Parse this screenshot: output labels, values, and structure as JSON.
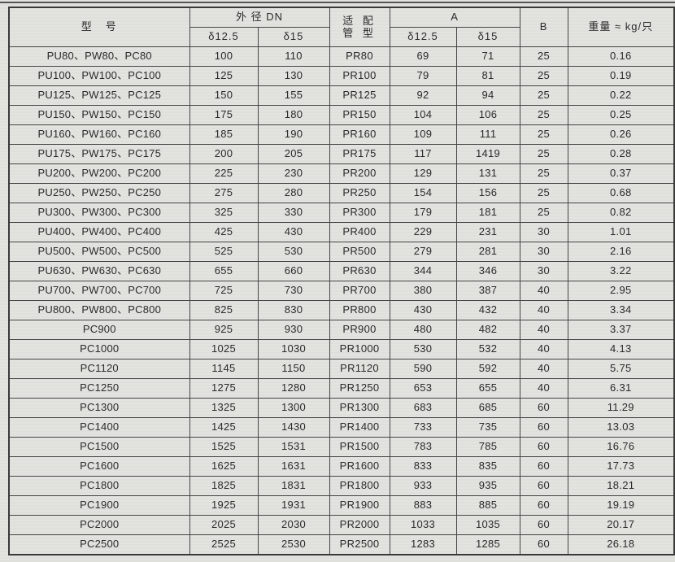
{
  "page": {
    "background": "#e3e3df",
    "border_color": "#454545",
    "text_color": "#2a2a2a"
  },
  "table": {
    "columns": {
      "model": "型　号",
      "outer_diameter_group": "外 径 DN",
      "outer_diameter_d125": "δ12.5",
      "outer_diameter_d15": "δ15",
      "pipe_type_line1": "适 配",
      "pipe_type_line2": "管 型",
      "a_group": "A",
      "a_d125": "δ12.5",
      "a_d15": "δ15",
      "b": "B",
      "weight": "重量 ≈ kg/只"
    },
    "col_keys": [
      "model",
      "dn-d125",
      "dn-d15",
      "pipe-type",
      "a-d125",
      "a-d15",
      "b",
      "weight"
    ],
    "rows": [
      [
        "PU80、PW80、PC80",
        "100",
        "110",
        "PR80",
        "69",
        "71",
        "25",
        "0.16"
      ],
      [
        "PU100、PW100、PC100",
        "125",
        "130",
        "PR100",
        "79",
        "81",
        "25",
        "0.19"
      ],
      [
        "PU125、PW125、PC125",
        "150",
        "155",
        "PR125",
        "92",
        "94",
        "25",
        "0.22"
      ],
      [
        "PU150、PW150、PC150",
        "175",
        "180",
        "PR150",
        "104",
        "106",
        "25",
        "0.25"
      ],
      [
        "PU160、PW160、PC160",
        "185",
        "190",
        "PR160",
        "109",
        "111",
        "25",
        "0.26"
      ],
      [
        "PU175、PW175、PC175",
        "200",
        "205",
        "PR175",
        "117",
        "1419",
        "25",
        "0.28"
      ],
      [
        "PU200、PW200、PC200",
        "225",
        "230",
        "PR200",
        "129",
        "131",
        "25",
        "0.37"
      ],
      [
        "PU250、PW250、PC250",
        "275",
        "280",
        "PR250",
        "154",
        "156",
        "25",
        "0.68"
      ],
      [
        "PU300、PW300、PC300",
        "325",
        "330",
        "PR300",
        "179",
        "181",
        "25",
        "0.82"
      ],
      [
        "PU400、PW400、PC400",
        "425",
        "430",
        "PR400",
        "229",
        "231",
        "30",
        "1.01"
      ],
      [
        "PU500、PW500、PC500",
        "525",
        "530",
        "PR500",
        "279",
        "281",
        "30",
        "2.16"
      ],
      [
        "PU630、PW630、PC630",
        "655",
        "660",
        "PR630",
        "344",
        "346",
        "30",
        "3.22"
      ],
      [
        "PU700、PW700、PC700",
        "725",
        "730",
        "PR700",
        "380",
        "387",
        "40",
        "2.95"
      ],
      [
        "PU800、PW800、PC800",
        "825",
        "830",
        "PR800",
        "430",
        "432",
        "40",
        "3.34"
      ],
      [
        "PC900",
        "925",
        "930",
        "PR900",
        "480",
        "482",
        "40",
        "3.37"
      ],
      [
        "PC1000",
        "1025",
        "1030",
        "PR1000",
        "530",
        "532",
        "40",
        "4.13"
      ],
      [
        "PC1120",
        "1145",
        "1150",
        "PR1120",
        "590",
        "592",
        "40",
        "5.75"
      ],
      [
        "PC1250",
        "1275",
        "1280",
        "PR1250",
        "653",
        "655",
        "40",
        "6.31"
      ],
      [
        "PC1300",
        "1325",
        "1300",
        "PR1300",
        "683",
        "685",
        "60",
        "11.29"
      ],
      [
        "PC1400",
        "1425",
        "1430",
        "PR1400",
        "733",
        "735",
        "60",
        "13.03"
      ],
      [
        "PC1500",
        "1525",
        "1531",
        "PR1500",
        "783",
        "785",
        "60",
        "16.76"
      ],
      [
        "PC1600",
        "1625",
        "1631",
        "PR1600",
        "833",
        "835",
        "60",
        "17.73"
      ],
      [
        "PC1800",
        "1825",
        "1831",
        "PR1800",
        "933",
        "935",
        "60",
        "18.21"
      ],
      [
        "PC1900",
        "1925",
        "1931",
        "PR1900",
        "883",
        "885",
        "60",
        "19.19"
      ],
      [
        "PC2000",
        "2025",
        "2030",
        "PR2000",
        "1033",
        "1035",
        "60",
        "20.17"
      ],
      [
        "PC2500",
        "2525",
        "2530",
        "PR2500",
        "1283",
        "1285",
        "60",
        "26.18"
      ]
    ]
  }
}
